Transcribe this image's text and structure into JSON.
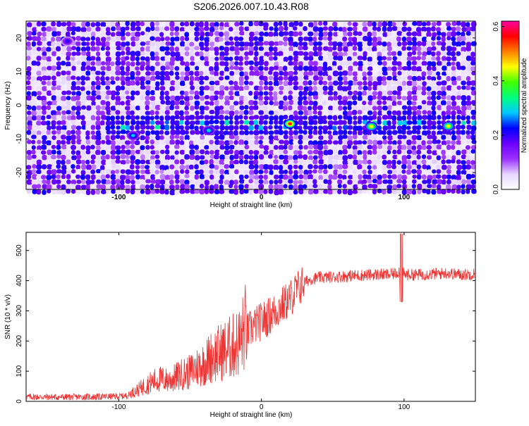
{
  "title": "S206.2026.007.10.43.R08",
  "chart_data": [
    {
      "type": "heatmap",
      "xlabel": "Height of straight line (km)",
      "ylabel": "Frequency (Hz)",
      "xlim": [
        -165,
        150
      ],
      "ylim": [
        -25,
        25
      ],
      "xticks": [
        -100,
        0,
        100
      ],
      "yticks": [
        -20,
        -10,
        0,
        10,
        20
      ],
      "colorbar": {
        "label": "Normalized spectral amplitude",
        "range": [
          0.0,
          0.62
        ],
        "ticks": [
          "0.0",
          "0.2",
          "0.4",
          "0.6"
        ],
        "colors": [
          "#ffffff",
          "#e6d5ff",
          "#9b30ff",
          "#6a00ff",
          "#0000ff",
          "#00c8ff",
          "#00ff80",
          "#40ff00",
          "#ffff00",
          "#ff8000",
          "#ff0000",
          "#ff00a0"
        ]
      },
      "band": {
        "frequency_hz": -6,
        "starts_km": -110
      },
      "hotspots": [
        {
          "x": 20,
          "y": -5.5,
          "value": 0.55
        },
        {
          "x": 77,
          "y": -6.3,
          "value": 0.45
        },
        {
          "x": 131,
          "y": -6.2,
          "value": 0.45
        },
        {
          "x": -37,
          "y": -7.5,
          "value": 0.3
        },
        {
          "x": -90,
          "y": -9.0,
          "value": 0.28
        },
        {
          "x": -136,
          "y": 19.0,
          "value": 0.2
        }
      ]
    },
    {
      "type": "line",
      "xlabel": "Height of straight line (km)",
      "ylabel": "SNR (10 * v/v)",
      "xlim": [
        -165,
        150
      ],
      "ylim": [
        0,
        560
      ],
      "xticks": [
        -100,
        0,
        100
      ],
      "yticks": [
        0,
        100,
        200,
        300,
        400,
        500
      ],
      "color": "#ee3333",
      "series": [
        {
          "x": [
            -165,
            -140,
            -110,
            -95,
            -88,
            -80,
            -75,
            -70,
            -65,
            -60,
            -55,
            -50,
            -45,
            -40,
            -35,
            -30,
            -25,
            -20,
            -15,
            -10,
            -5,
            0,
            5,
            10,
            15,
            20,
            25,
            30,
            35,
            40,
            50,
            60,
            70,
            80,
            90,
            95,
            98,
            100,
            110,
            120,
            130,
            140,
            150
          ],
          "y": [
            15,
            14,
            15,
            18,
            30,
            50,
            60,
            65,
            60,
            70,
            80,
            85,
            100,
            110,
            130,
            140,
            150,
            160,
            175,
            230,
            250,
            265,
            280,
            300,
            320,
            340,
            370,
            395,
            405,
            410,
            412,
            415,
            418,
            420,
            420,
            425,
            440,
            420,
            420,
            422,
            425,
            420,
            422
          ]
        }
      ]
    }
  ]
}
